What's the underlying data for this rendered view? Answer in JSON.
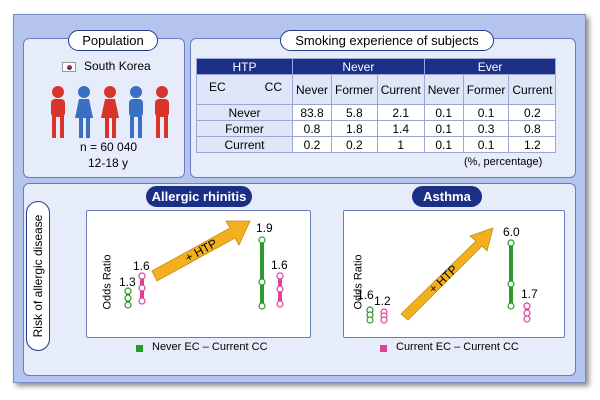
{
  "population": {
    "title": "Population",
    "country": "South Korea",
    "n": "n = 60 040",
    "age": "12-18 y"
  },
  "smoking": {
    "title": "Smoking experience of subjects",
    "htp": "HTP",
    "never": "Never",
    "ever": "Ever",
    "ec": "EC",
    "cc": "CC",
    "cols": [
      "Never",
      "Former",
      "Current",
      "Never",
      "Former",
      "Current"
    ],
    "rows": [
      {
        "label": "Never",
        "cells": [
          "83.8",
          "5.8",
          "2.1",
          "0.1",
          "0.1",
          "0.2"
        ]
      },
      {
        "label": "Former",
        "cells": [
          "0.8",
          "1.8",
          "1.4",
          "0.1",
          "0.3",
          "0.8"
        ]
      },
      {
        "label": "Current",
        "cells": [
          "0.2",
          "0.2",
          "1",
          "0.1",
          "0.1",
          "1.2"
        ]
      }
    ],
    "unit": "(%, percentage)"
  },
  "risk_label": "Risk of allergic disease",
  "panels": [
    {
      "title": "Allergic rhinitis",
      "ylabel": "Odds Ratio",
      "arrow_label": "+ HTP",
      "before": {
        "green": "1.3",
        "pink": "1.6"
      },
      "after": {
        "green": "1.9",
        "pink": "1.6"
      }
    },
    {
      "title": "Asthma",
      "ylabel": "Odds Ratio",
      "arrow_label": "+ HTP",
      "before": {
        "green": "1.6",
        "pink": "1.2"
      },
      "after": {
        "green": "6.0",
        "pink": "1.7"
      }
    }
  ],
  "legend": {
    "green": "Never EC – Current CC",
    "pink": "Current EC – Current CC"
  },
  "colors": {
    "green": "#2a9a2a",
    "pink": "#e0409a",
    "arrow": "#f2b01e",
    "navy": "#1c2f86"
  }
}
